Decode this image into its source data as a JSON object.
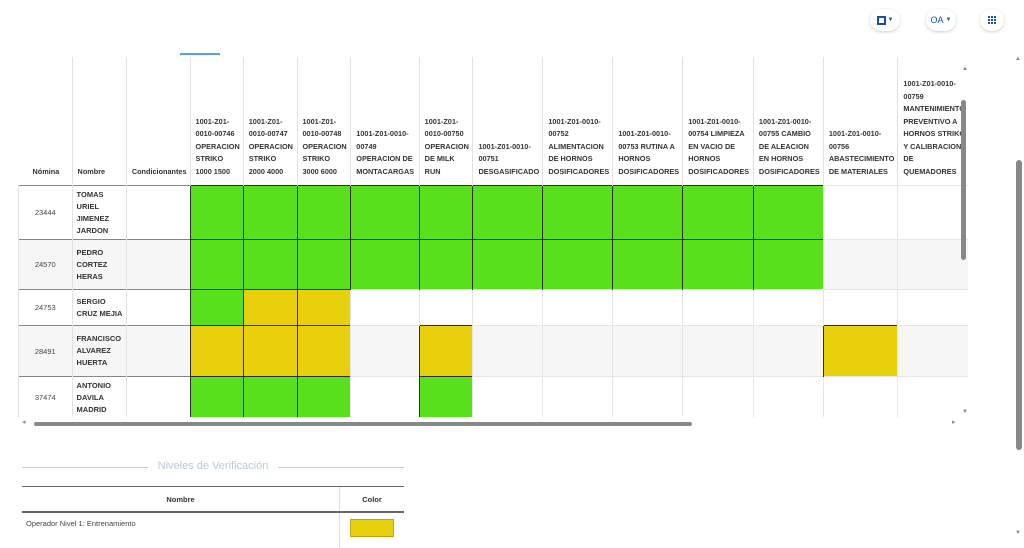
{
  "topbar": {
    "btn1_icon": "square-icon",
    "btn2_label": "OA",
    "btn3_icon": "apps-grid-icon"
  },
  "colors": {
    "green": "#57e01b",
    "yellow": "#e8d10c"
  },
  "table": {
    "columns": [
      "Nómina",
      "Nombre",
      "Condicionantes",
      "1001-Z01-0010-00746 OPERACION STRIKO 1000 1500",
      "1001-Z01-0010-00747 OPERACION STRIKO 2000 4000",
      "1001-Z01-0010-00748 OPERACION STRIKO 3000 6000",
      "1001-Z01-0010-00749 OPERACION DE MONTACARGAS",
      "1001-Z01-0010-00750 OPERACION DE MILK RUN",
      "1001-Z01-0010-00751 DESGASIFICADO",
      "1001-Z01-0010-00752 ALIMENTACION DE HORNOS DOSIFICADORES",
      "1001-Z01-0010-00753 RUTINA A HORNOS DOSIFICADORES",
      "1001-Z01-0010-00754 LIMPIEZA EN VACIO DE HORNOS DOSIFICADORES",
      "1001-Z01-0010-00755 CAMBIO DE ALEACION EN HORNOS DOSIFICADORES",
      "1001-Z01-0010-00756 ABASTECIMIENTO DE MATERIALES",
      "1001-Z01-0010-00759 MANTENIMIENTO PREVENTIVO A HORNOS STRIKO Y CALIBRACION DE QUEMADORES"
    ],
    "rows": [
      {
        "nomina": "23444",
        "nombre": "TOMAS URIEL JIMENEZ JARDON",
        "condicionantes": "",
        "levels": [
          "green",
          "green",
          "green",
          "green",
          "green",
          "green",
          "green",
          "green",
          "green",
          "green",
          "none",
          "none"
        ]
      },
      {
        "nomina": "24570",
        "nombre": "PEDRO CORTEZ HERAS",
        "condicionantes": "",
        "levels": [
          "green",
          "green",
          "green",
          "green",
          "green",
          "green",
          "green",
          "green",
          "green",
          "green",
          "none",
          "none"
        ]
      },
      {
        "nomina": "24753",
        "nombre": "SERGIO CRUZ MEJIA",
        "condicionantes": "",
        "levels": [
          "green",
          "yellow",
          "yellow",
          "none",
          "none",
          "none",
          "none",
          "none",
          "none",
          "none",
          "none",
          "none"
        ]
      },
      {
        "nomina": "28491",
        "nombre": "FRANCISCO ALVAREZ HUERTA",
        "condicionantes": "",
        "levels": [
          "yellow",
          "yellow",
          "yellow",
          "none",
          "yellow",
          "none",
          "none",
          "none",
          "none",
          "none",
          "yellow",
          "none"
        ]
      },
      {
        "nomina": "37474",
        "nombre": "ANTONIO DAVILA MADRID",
        "condicionantes": "",
        "levels": [
          "green",
          "green",
          "green",
          "none",
          "green",
          "none",
          "none",
          "none",
          "none",
          "none",
          "none",
          "none"
        ]
      }
    ]
  },
  "niveles": {
    "title": "Niveles de Verificación",
    "headers": {
      "nombre": "Nombre",
      "color": "Color"
    },
    "items": [
      {
        "nombre": "Operador Nivel 1: Entrenamiento",
        "color": "#e8d10c"
      }
    ]
  }
}
